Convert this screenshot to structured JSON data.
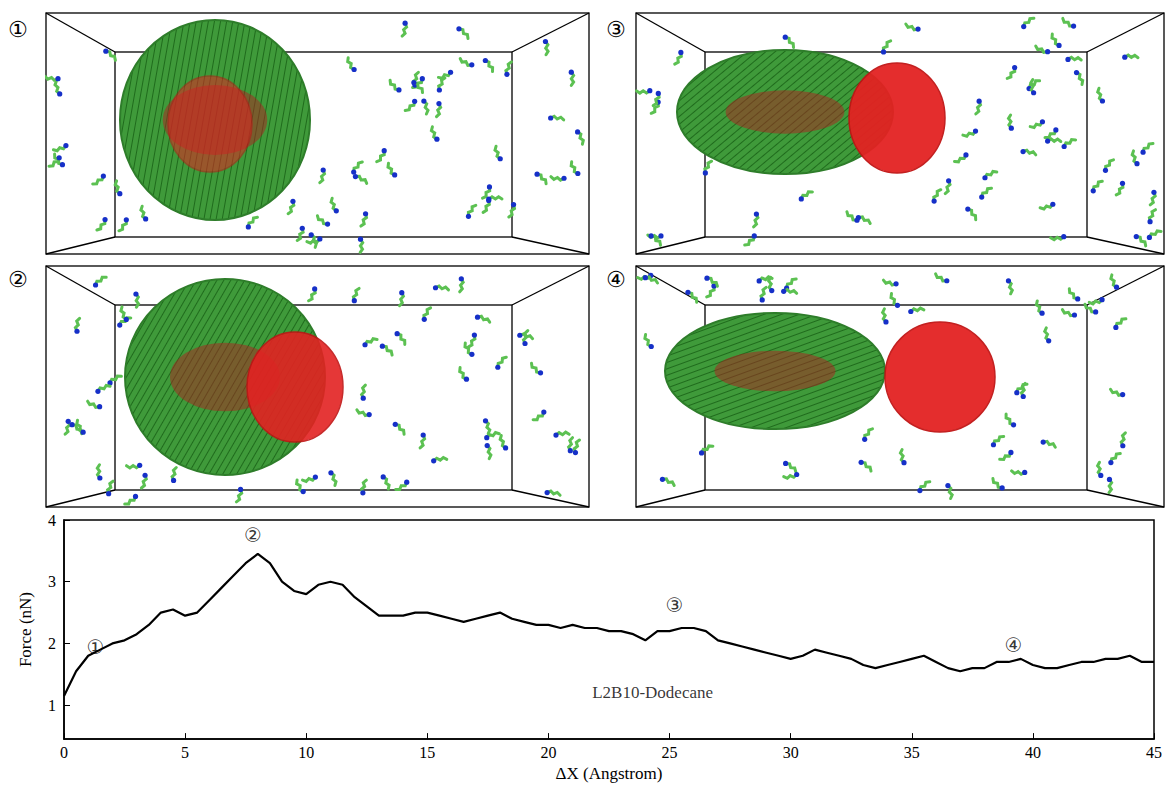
{
  "panels": [
    {
      "label": "①"
    },
    {
      "label": "②"
    },
    {
      "label": "③"
    },
    {
      "label": "④"
    }
  ],
  "chart_data": {
    "type": "line",
    "xlabel": "ΔX (Angstrom)",
    "ylabel": "Force (nN)",
    "x": [
      0,
      0.5,
      1,
      1.5,
      2,
      2.5,
      3,
      3.5,
      4,
      4.5,
      5,
      5.5,
      6,
      6.5,
      7,
      7.5,
      8,
      8.5,
      9,
      9.5,
      10,
      10.5,
      11,
      11.5,
      12,
      12.5,
      13,
      13.5,
      14,
      14.5,
      15,
      15.5,
      16,
      16.5,
      17,
      17.5,
      18,
      18.5,
      19,
      19.5,
      20,
      20.5,
      21,
      21.5,
      22,
      22.5,
      23,
      23.5,
      24,
      24.5,
      25,
      25.5,
      26,
      26.5,
      27,
      27.5,
      28,
      28.5,
      29,
      29.5,
      30,
      30.5,
      31,
      31.5,
      32,
      32.5,
      33,
      33.5,
      34,
      34.5,
      35,
      35.5,
      36,
      36.5,
      37,
      37.5,
      38,
      38.5,
      39,
      39.5,
      40,
      40.5,
      41,
      41.5,
      42,
      42.5,
      43,
      43.5,
      44,
      44.5,
      45
    ],
    "values": [
      1.15,
      1.55,
      1.8,
      1.9,
      2.0,
      2.05,
      2.15,
      2.3,
      2.5,
      2.55,
      2.45,
      2.5,
      2.7,
      2.9,
      3.1,
      3.3,
      3.45,
      3.3,
      3.0,
      2.85,
      2.8,
      2.95,
      3.0,
      2.95,
      2.75,
      2.6,
      2.45,
      2.45,
      2.45,
      2.5,
      2.5,
      2.45,
      2.4,
      2.35,
      2.4,
      2.45,
      2.5,
      2.4,
      2.35,
      2.3,
      2.3,
      2.25,
      2.3,
      2.25,
      2.25,
      2.2,
      2.2,
      2.15,
      2.05,
      2.2,
      2.2,
      2.25,
      2.25,
      2.2,
      2.05,
      2.0,
      1.95,
      1.9,
      1.85,
      1.8,
      1.75,
      1.8,
      1.9,
      1.85,
      1.8,
      1.75,
      1.65,
      1.6,
      1.65,
      1.7,
      1.75,
      1.8,
      1.7,
      1.6,
      1.55,
      1.6,
      1.6,
      1.7,
      1.7,
      1.75,
      1.65,
      1.6,
      1.6,
      1.65,
      1.7,
      1.7,
      1.75,
      1.75,
      1.8,
      1.7,
      1.7
    ],
    "color": "#000000",
    "xlim": [
      0,
      45
    ],
    "xticks": [
      0,
      5,
      10,
      15,
      20,
      25,
      30,
      35,
      40,
      45
    ],
    "ylim": [
      0.45,
      4
    ],
    "yticks": [
      1,
      2,
      3,
      4
    ],
    "grid": false,
    "annotations": [
      {
        "text": "①",
        "x": 1.3,
        "y": 1.95
      },
      {
        "text": "②",
        "x": 7.8,
        "y": 3.75
      },
      {
        "text": "③",
        "x": 25.2,
        "y": 2.62
      },
      {
        "text": "④",
        "x": 39.2,
        "y": 1.97
      },
      {
        "text": "L2B10-Dodecane",
        "x": 24.3,
        "y": 1.2
      }
    ]
  }
}
